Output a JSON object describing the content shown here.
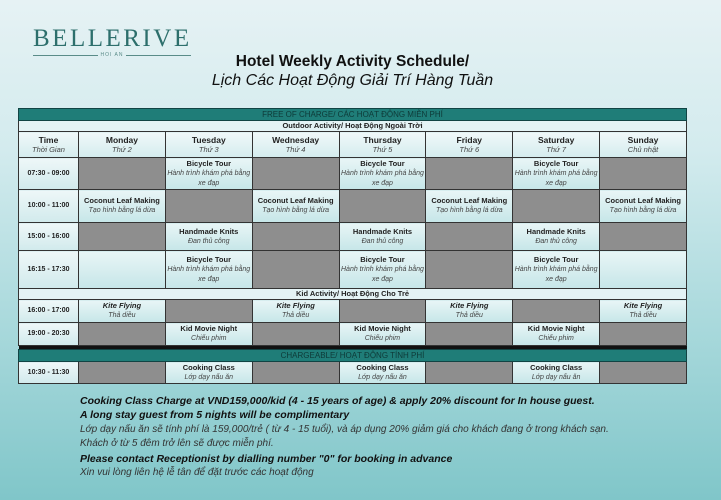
{
  "logo": {
    "brand": "BELLERIVE",
    "location": "HOI AN"
  },
  "title": {
    "line1": "Hotel Weekly Activity Schedule/",
    "line2": "Lịch Các Hoạt Động Giải Trí Hàng Tuần"
  },
  "colors": {
    "banner": "#1f7d78",
    "unavailable": "#8e8e8e",
    "available": "#d6eef0"
  },
  "schedule": {
    "free_banner": "FREE OF CHARGE/ CÁC HOẠT ĐỘNG MIỄN PHÍ",
    "outdoor_heading": "Outdoor Activity/ Hoạt Động Ngoài Trời",
    "kid_heading": "Kid Activity/ Hoạt Động Cho Trẻ",
    "charge_banner": "CHARGEABLE/ HOẠT ĐỘNG TÍNH PHÍ",
    "columns": [
      {
        "en": "Time",
        "vi": "Thời Gian"
      },
      {
        "en": "Monday",
        "vi": "Thứ 2"
      },
      {
        "en": "Tuesday",
        "vi": "Thứ 3"
      },
      {
        "en": "Wednesday",
        "vi": "Thứ 4"
      },
      {
        "en": "Thursday",
        "vi": "Thứ 5"
      },
      {
        "en": "Friday",
        "vi": "Thứ 6"
      },
      {
        "en": "Saturday",
        "vi": "Thứ 7"
      },
      {
        "en": "Sunday",
        "vi": "Chủ nhật"
      }
    ],
    "outdoor_rows": [
      {
        "time": "07:30 - 09:00",
        "h": 32,
        "cells": [
          null,
          {
            "title": "Bicycle Tour",
            "sub": "Hành trình khám phá bằng xe đạp"
          },
          null,
          {
            "title": "Bicycle Tour",
            "sub": "Hành trình khám phá bằng xe đạp"
          },
          null,
          {
            "title": "Bicycle Tour",
            "sub": "Hành trình khám phá bằng xe đạp"
          },
          null
        ]
      },
      {
        "time": "10:00 - 11:00",
        "h": 33,
        "cells": [
          {
            "title": "Coconut Leaf Making",
            "sub": "Tạo hình bằng lá dừa"
          },
          null,
          {
            "title": "Coconut Leaf Making",
            "sub": "Tạo hình bằng lá dừa"
          },
          null,
          {
            "title": "Coconut Leaf Making",
            "sub": "Tạo hình bằng lá dừa"
          },
          null,
          {
            "title": "Coconut Leaf Making",
            "sub": "Tạo hình bằng lá dừa"
          }
        ]
      },
      {
        "time": "15:00 - 16:00",
        "h": 28,
        "cells": [
          null,
          {
            "title": "Handmade Knits",
            "sub": "Đan thủ công"
          },
          null,
          {
            "title": "Handmade Knits",
            "sub": "Đan thủ công"
          },
          null,
          {
            "title": "Handmade Knits",
            "sub": "Đan thủ công"
          },
          null
        ]
      },
      {
        "time": "16:15 - 17:30",
        "h": 38,
        "cells": [
          {},
          {
            "title": "Bicycle Tour",
            "sub": "Hành trình khám phá bằng xe đạp"
          },
          null,
          {
            "title": "Bicycle Tour",
            "sub": "Hành trình khám phá bằng xe đạp"
          },
          null,
          {
            "title": "Bicycle Tour",
            "sub": "Hành trình khám phá bằng xe đạp"
          },
          {}
        ]
      }
    ],
    "kid_rows": [
      {
        "time": "16:00 - 17:00",
        "h": 23,
        "cells": [
          {
            "title": "Kite Flying",
            "sub": "Thả diều",
            "italic": true
          },
          null,
          {
            "title": "Kite Flying",
            "sub": "Thả diều",
            "italic": true
          },
          null,
          {
            "title": "Kite Flying",
            "sub": "Thả diều",
            "italic": true
          },
          null,
          {
            "title": "Kite Flying",
            "sub": "Thả diều",
            "italic": true
          }
        ]
      },
      {
        "time": "19:00 - 20:30",
        "h": 23,
        "cells": [
          null,
          {
            "title": "Kid Movie Night",
            "sub": "Chiếu phim"
          },
          null,
          {
            "title": "Kid Movie Night",
            "sub": "Chiếu phim"
          },
          null,
          {
            "title": "Kid Movie Night",
            "sub": "Chiếu phim"
          },
          null
        ]
      }
    ],
    "charge_rows": [
      {
        "time": "10:30 - 11:30",
        "h": 22,
        "cells": [
          null,
          {
            "title": "Cooking Class",
            "sub": "Lớp dạy nấu ăn"
          },
          null,
          {
            "title": "Cooking Class",
            "sub": "Lớp dạy nấu ăn"
          },
          null,
          {
            "title": "Cooking Class",
            "sub": "Lớp dạy nấu ăn"
          },
          null
        ]
      }
    ]
  },
  "notes": [
    {
      "text": "Cooking Class Charge at VND159,000/kid (4 - 15 years of age) & apply 20% discount for In house guest.",
      "style": "b"
    },
    {
      "text": "A long stay guest from 5 nights will be complimentary",
      "style": "b"
    },
    {
      "text": "Lớp dạy nấu ăn sẽ tính phí là 159,000/trẻ ( từ 4 - 15 tuổi), và áp dụng 20% giảm giá cho khách đang ở trong khách sạn.",
      "style": "n"
    },
    {
      "text": "Khách ở từ 5 đêm trở lên sẽ được miễn phí.",
      "style": "n"
    },
    {
      "text": "Please contact Receptionist by dialling number \"0\" for booking in advance",
      "style": "b"
    },
    {
      "text": "Xin vui lòng liên hệ lễ tân để đặt trước các hoạt động",
      "style": "n"
    }
  ]
}
